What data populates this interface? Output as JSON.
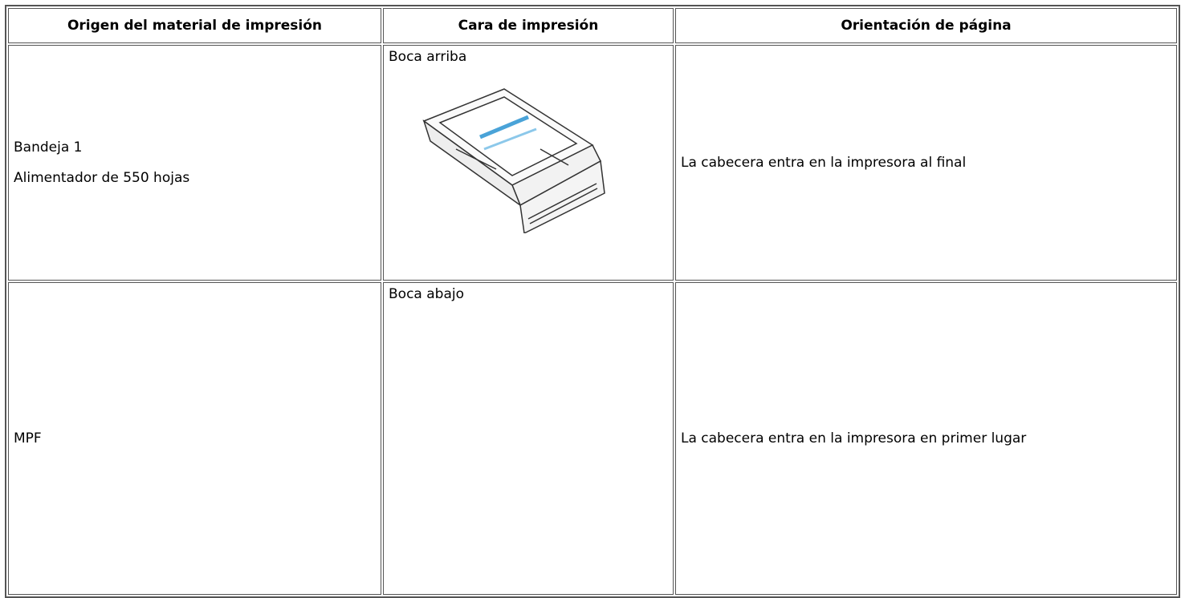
{
  "table": {
    "header": [
      "Origen del material de impresión",
      "Cara de impresión",
      "Orientación de página"
    ],
    "rows": [
      {
        "source": [
          "Bandeja 1",
          "Alimentador de 550 hojas"
        ],
        "side": "Boca arriba",
        "orientation": "La cabecera entra en la impresora al final"
      },
      {
        "source": [
          "MPF"
        ],
        "side": "Boca abajo",
        "orientation": "La cabecera entra en la impresora en primer lugar"
      }
    ]
  }
}
